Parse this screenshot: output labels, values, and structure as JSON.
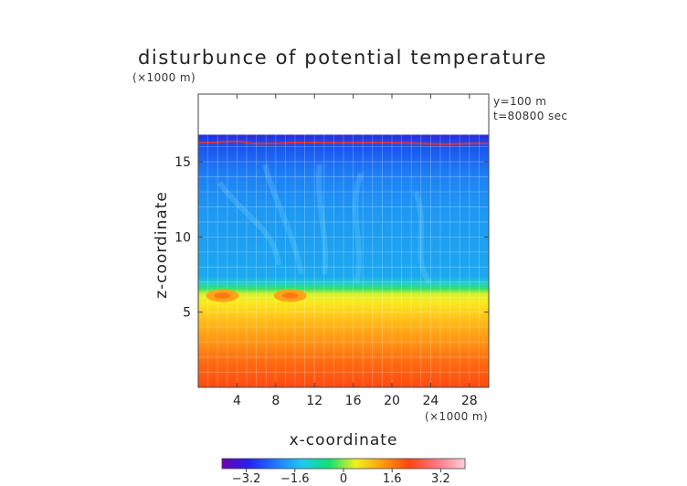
{
  "chart_data": {
    "type": "heatmap",
    "title": "disturbunce of potential temperature",
    "xlabel": "x-coordinate",
    "ylabel": "z-coordinate",
    "x_unit": "(×1000 m)",
    "y_unit": "(×1000 m)",
    "annotations": [
      "y=100 m",
      "t=80800 sec"
    ],
    "xlim": [
      0,
      30
    ],
    "ylim": [
      0,
      19.5
    ],
    "x_ticks": [
      4,
      8,
      12,
      16,
      20,
      24,
      28
    ],
    "y_ticks": [
      5,
      10,
      15
    ],
    "colorbar": {
      "min": -4.0,
      "max": 4.0,
      "ticks": [
        -3.2,
        -1.6,
        0,
        1.6,
        3.2
      ],
      "tick_labels": [
        "−3.2",
        "−1.6",
        "0",
        "1.6",
        "3.2"
      ],
      "colors": [
        "#7000b0",
        "#2222ee",
        "#1e78ff",
        "#20c8f0",
        "#10e070",
        "#f0f020",
        "#ff9a10",
        "#ff4410",
        "#ff7a88",
        "#ffd0d8"
      ]
    },
    "field_layers": [
      {
        "z_from": 0.0,
        "z_to": 1.0,
        "value": 3.0
      },
      {
        "z_from": 1.0,
        "z_to": 2.0,
        "value": 2.7
      },
      {
        "z_from": 2.0,
        "z_to": 3.0,
        "value": 2.3
      },
      {
        "z_from": 3.0,
        "z_to": 4.0,
        "value": 1.9
      },
      {
        "z_from": 4.0,
        "z_to": 5.0,
        "value": 1.5
      },
      {
        "z_from": 5.0,
        "z_to": 6.0,
        "value": 1.0
      },
      {
        "z_from": 6.0,
        "z_to": 6.6,
        "value": 0.1
      },
      {
        "z_from": 6.6,
        "z_to": 9.0,
        "value": -1.0
      },
      {
        "z_from": 9.0,
        "z_to": 14.0,
        "value": -1.2
      },
      {
        "z_from": 14.0,
        "z_to": 16.8,
        "value": -1.7
      }
    ],
    "undefined_above_z": 16.8,
    "features": [
      {
        "x": 2.5,
        "z": 6.1,
        "value": 2.3
      },
      {
        "x": 9.5,
        "z": 6.1,
        "value": 2.0
      }
    ]
  }
}
